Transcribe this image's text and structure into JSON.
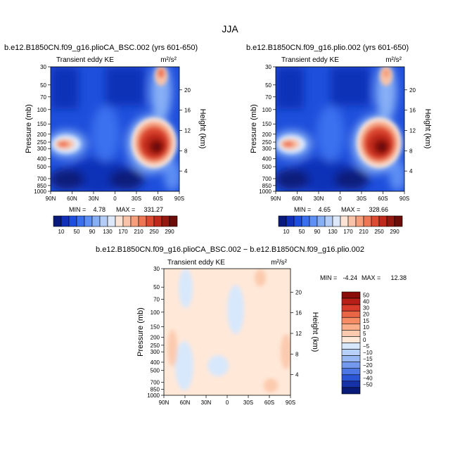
{
  "figure_title": "JJA",
  "chart_data": [
    {
      "type": "heatmap",
      "title": "b.e12.B1850CN.f09_g16.plioCA_BSC.002 (yrs 601-650)",
      "left_label": "Transient eddy KE",
      "units": "m²/s²",
      "ylabel": "Pressure (mb)",
      "ylabel_right": "Height (km)",
      "x_ticks": [
        "90N",
        "60N",
        "30N",
        "0",
        "30S",
        "60S",
        "90S"
      ],
      "y_ticks": [
        "30",
        "50",
        "70",
        "100",
        "150",
        "200",
        "250",
        "300",
        "400",
        "500",
        "700",
        "850",
        "1000"
      ],
      "height_ticks": [
        "4",
        "8",
        "12",
        "16",
        "20"
      ],
      "min_label": "MIN =",
      "min_value": "4.78",
      "max_label": "MAX =",
      "max_value": "331.27",
      "colorbar_levels": [
        "10",
        "50",
        "90",
        "130",
        "170",
        "210",
        "250",
        "290"
      ]
    },
    {
      "type": "heatmap",
      "title": "b.e12.B1850CN.f09_g16.plio.002 (yrs 601-650)",
      "left_label": "Transient eddy KE",
      "units": "m²/s²",
      "ylabel": "Pressure (mb)",
      "ylabel_right": "Height (km)",
      "x_ticks": [
        "90N",
        "60N",
        "30N",
        "0",
        "30S",
        "60S",
        "90S"
      ],
      "y_ticks": [
        "30",
        "50",
        "70",
        "100",
        "150",
        "200",
        "250",
        "300",
        "400",
        "500",
        "700",
        "850",
        "1000"
      ],
      "height_ticks": [
        "4",
        "8",
        "12",
        "16",
        "20"
      ],
      "min_label": "MIN =",
      "min_value": "4.65",
      "max_label": "MAX =",
      "max_value": "328.66",
      "colorbar_levels": [
        "10",
        "50",
        "90",
        "130",
        "170",
        "210",
        "250",
        "290"
      ]
    },
    {
      "type": "heatmap",
      "title": "b.e12.B1850CN.f09_g16.plioCA_BSC.002 − b.e12.B1850CN.f09_g16.plio.002",
      "left_label": "Transient eddy KE",
      "units": "m²/s²",
      "ylabel": "Pressure (mb)",
      "ylabel_right": "Height (km)",
      "x_ticks": [
        "90N",
        "60N",
        "30N",
        "0",
        "30S",
        "60S",
        "90S"
      ],
      "y_ticks": [
        "30",
        "50",
        "70",
        "100",
        "150",
        "200",
        "250",
        "300",
        "400",
        "500",
        "700",
        "850",
        "1000"
      ],
      "height_ticks": [
        "4",
        "8",
        "12",
        "16",
        "20"
      ],
      "min_label": "MIN =",
      "min_value": "-4.24",
      "max_label": "MAX =",
      "max_value": "12.38",
      "colorbar_levels": [
        "50",
        "40",
        "30",
        "20",
        "15",
        "10",
        "5",
        "0",
        "−5",
        "−10",
        "−15",
        "−20",
        "−30",
        "−40",
        "−50"
      ]
    }
  ],
  "colors": {
    "ke_scale": [
      "#0a1a7a",
      "#1030b8",
      "#1e4fdc",
      "#3a70ee",
      "#5d8ff4",
      "#86aff6",
      "#b3cdf8",
      "#dde8fb",
      "#fbe3d5",
      "#f8c3a8",
      "#f59f7c",
      "#ee7654",
      "#dd4a32",
      "#c02a1d",
      "#961710",
      "#6a0c08"
    ],
    "diff_pos": [
      "#ffe8d8",
      "#fccaae",
      "#faae8a",
      "#f58c66",
      "#ea6446",
      "#d83a2c",
      "#b81e18",
      "#8a0c08"
    ],
    "diff_neg": [
      "#d8e8fc",
      "#b8d1f8",
      "#97b8f3",
      "#7299ee",
      "#4d77e4",
      "#2a55d5",
      "#1632a8",
      "#0a1a78"
    ]
  }
}
